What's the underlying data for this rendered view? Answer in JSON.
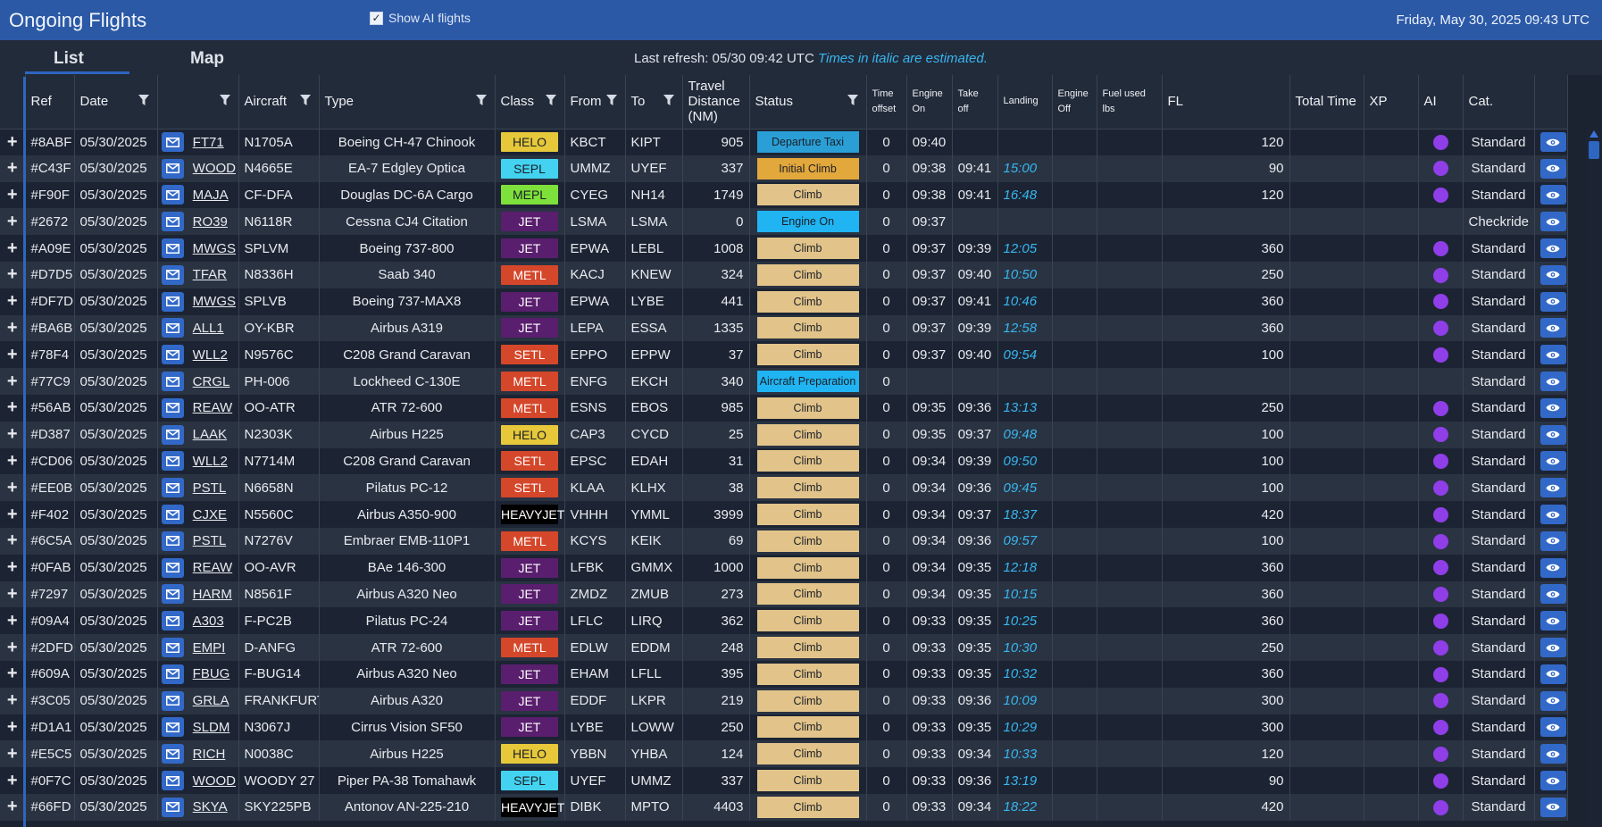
{
  "app": {
    "title": "Ongoing Flights",
    "show_ai_label": "Show AI flights",
    "show_ai_checked": true,
    "clock": "Friday, May 30, 2025 09:43 UTC"
  },
  "tabs": {
    "list": "List",
    "map": "Map",
    "active": "List"
  },
  "refresh": {
    "text": "Last refresh: 05/30 09:42 UTC",
    "note": "Times in italic are estimated."
  },
  "columns": {
    "ref": "Ref",
    "date": "Date",
    "aircraft": "Aircraft",
    "type": "Type",
    "class": "Class",
    "from": "From",
    "to": "To",
    "travel": "Travel Distance (NM)",
    "status": "Status",
    "time_offset": "Time offset",
    "engine_on": "Engine On",
    "take_off": "Take off",
    "landing": "Landing",
    "engine_off": "Engine Off",
    "fuel": "Fuel used lbs",
    "fl": "FL",
    "total_time": "Total Time",
    "xp": "XP",
    "ai": "AI",
    "cat": "Cat."
  },
  "class_colors": {
    "HELO": {
      "bg": "#e6c83a",
      "fg": "#1b1f27"
    },
    "SEPL": {
      "bg": "#43d3f0",
      "fg": "#1b1f27"
    },
    "MEPL": {
      "bg": "#7ee03a",
      "fg": "#1b1f27"
    },
    "JET": {
      "bg": "#5a1e6e",
      "fg": "#ffffff"
    },
    "METL": {
      "bg": "#d5472a",
      "fg": "#ffffff"
    },
    "SETL": {
      "bg": "#d5472a",
      "fg": "#ffffff"
    },
    "HEAVYJET": {
      "bg": "#000000",
      "fg": "#ffffff"
    }
  },
  "status_colors": {
    "Departure Taxi": "#2a9fd6",
    "Initial Climb": "#e3a83c",
    "Climb": "#e2c48a",
    "Engine On": "#20b4f2",
    "Aircraft Preparation": "#20b4f2"
  },
  "flights": [
    {
      "ref": "#8ABF",
      "date": "05/30/2025",
      "callsign": "FT71",
      "aircraft": "N1705A",
      "type": "Boeing CH-47 Chinook",
      "class": "HELO",
      "from": "KBCT",
      "to": "KIPT",
      "distance": "905",
      "status": "Departure Taxi",
      "offset": "0",
      "engine_on": "09:40",
      "take_off": "",
      "landing": "",
      "fl": "120",
      "ai": true,
      "cat": "Standard"
    },
    {
      "ref": "#C43F",
      "date": "05/30/2025",
      "callsign": "WOOD",
      "aircraft": "N4665E",
      "type": "EA-7 Edgley Optica",
      "class": "SEPL",
      "from": "UMMZ",
      "to": "UYEF",
      "distance": "337",
      "status": "Initial Climb",
      "offset": "0",
      "engine_on": "09:38",
      "take_off": "09:41",
      "landing": "15:00",
      "fl": "90",
      "ai": true,
      "cat": "Standard"
    },
    {
      "ref": "#F90F",
      "date": "05/30/2025",
      "callsign": "MAJA",
      "aircraft": "CF-DFA",
      "type": "Douglas DC-6A Cargo",
      "class": "MEPL",
      "from": "CYEG",
      "to": "NH14",
      "distance": "1749",
      "status": "Climb",
      "offset": "0",
      "engine_on": "09:38",
      "take_off": "09:41",
      "landing": "16:48",
      "fl": "120",
      "ai": true,
      "cat": "Standard"
    },
    {
      "ref": "#2672",
      "date": "05/30/2025",
      "callsign": "RO39",
      "aircraft": "N6118R",
      "type": "Cessna CJ4 Citation",
      "class": "JET",
      "from": "LSMA",
      "to": "LSMA",
      "distance": "0",
      "status": "Engine On",
      "offset": "0",
      "engine_on": "09:37",
      "take_off": "",
      "landing": "",
      "fl": "",
      "ai": false,
      "cat": "Checkride"
    },
    {
      "ref": "#A09E",
      "date": "05/30/2025",
      "callsign": "MWGS",
      "aircraft": "SPLVM",
      "type": "Boeing 737-800",
      "class": "JET",
      "from": "EPWA",
      "to": "LEBL",
      "distance": "1008",
      "status": "Climb",
      "offset": "0",
      "engine_on": "09:37",
      "take_off": "09:39",
      "landing": "12:05",
      "fl": "360",
      "ai": true,
      "cat": "Standard"
    },
    {
      "ref": "#D7D5",
      "date": "05/30/2025",
      "callsign": "TFAR",
      "aircraft": "N8336H",
      "type": "Saab 340",
      "class": "METL",
      "from": "KACJ",
      "to": "KNEW",
      "distance": "324",
      "status": "Climb",
      "offset": "0",
      "engine_on": "09:37",
      "take_off": "09:40",
      "landing": "10:50",
      "fl": "250",
      "ai": true,
      "cat": "Standard"
    },
    {
      "ref": "#DF7D",
      "date": "05/30/2025",
      "callsign": "MWGS",
      "aircraft": "SPLVB",
      "type": "Boeing 737-MAX8",
      "class": "JET",
      "from": "EPWA",
      "to": "LYBE",
      "distance": "441",
      "status": "Climb",
      "offset": "0",
      "engine_on": "09:37",
      "take_off": "09:41",
      "landing": "10:46",
      "fl": "360",
      "ai": true,
      "cat": "Standard"
    },
    {
      "ref": "#BA6B",
      "date": "05/30/2025",
      "callsign": "ALL1",
      "aircraft": "OY-KBR",
      "type": "Airbus A319",
      "class": "JET",
      "from": "LEPA",
      "to": "ESSA",
      "distance": "1335",
      "status": "Climb",
      "offset": "0",
      "engine_on": "09:37",
      "take_off": "09:39",
      "landing": "12:58",
      "fl": "360",
      "ai": true,
      "cat": "Standard"
    },
    {
      "ref": "#78F4",
      "date": "05/30/2025",
      "callsign": "WLL2",
      "aircraft": "N9576C",
      "type": "C208 Grand Caravan",
      "class": "SETL",
      "from": "EPPO",
      "to": "EPPW",
      "distance": "37",
      "status": "Climb",
      "offset": "0",
      "engine_on": "09:37",
      "take_off": "09:40",
      "landing": "09:54",
      "fl": "100",
      "ai": true,
      "cat": "Standard"
    },
    {
      "ref": "#77C9",
      "date": "05/30/2025",
      "callsign": "CRGL",
      "aircraft": "PH-006",
      "type": "Lockheed C-130E",
      "class": "METL",
      "from": "ENFG",
      "to": "EKCH",
      "distance": "340",
      "status": "Aircraft Preparation",
      "offset": "0",
      "engine_on": "",
      "take_off": "",
      "landing": "",
      "fl": "",
      "ai": false,
      "cat": "Standard"
    },
    {
      "ref": "#56AB",
      "date": "05/30/2025",
      "callsign": "REAW",
      "aircraft": "OO-ATR",
      "type": "ATR 72-600",
      "class": "METL",
      "from": "ESNS",
      "to": "EBOS",
      "distance": "985",
      "status": "Climb",
      "offset": "0",
      "engine_on": "09:35",
      "take_off": "09:36",
      "landing": "13:13",
      "fl": "250",
      "ai": true,
      "cat": "Standard"
    },
    {
      "ref": "#D387",
      "date": "05/30/2025",
      "callsign": "LAAK",
      "aircraft": "N2303K",
      "type": "Airbus H225",
      "class": "HELO",
      "from": "CAP3",
      "to": "CYCD",
      "distance": "25",
      "status": "Climb",
      "offset": "0",
      "engine_on": "09:35",
      "take_off": "09:37",
      "landing": "09:48",
      "fl": "100",
      "ai": true,
      "cat": "Standard"
    },
    {
      "ref": "#CD06",
      "date": "05/30/2025",
      "callsign": "WLL2",
      "aircraft": "N7714M",
      "type": "C208 Grand Caravan",
      "class": "SETL",
      "from": "EPSC",
      "to": "EDAH",
      "distance": "31",
      "status": "Climb",
      "offset": "0",
      "engine_on": "09:34",
      "take_off": "09:39",
      "landing": "09:50",
      "fl": "100",
      "ai": true,
      "cat": "Standard"
    },
    {
      "ref": "#EE0B",
      "date": "05/30/2025",
      "callsign": "PSTL",
      "aircraft": "N6658N",
      "type": "Pilatus PC-12",
      "class": "SETL",
      "from": "KLAA",
      "to": "KLHX",
      "distance": "38",
      "status": "Climb",
      "offset": "0",
      "engine_on": "09:34",
      "take_off": "09:36",
      "landing": "09:45",
      "fl": "100",
      "ai": true,
      "cat": "Standard"
    },
    {
      "ref": "#F402",
      "date": "05/30/2025",
      "callsign": "CJXE",
      "aircraft": "N5560C",
      "type": "Airbus A350-900",
      "class": "HEAVYJET",
      "from": "VHHH",
      "to": "YMML",
      "distance": "3999",
      "status": "Climb",
      "offset": "0",
      "engine_on": "09:34",
      "take_off": "09:37",
      "landing": "18:37",
      "fl": "420",
      "ai": true,
      "cat": "Standard"
    },
    {
      "ref": "#6C5A",
      "date": "05/30/2025",
      "callsign": "PSTL",
      "aircraft": "N7276V",
      "type": "Embraer EMB-110P1",
      "class": "METL",
      "from": "KCYS",
      "to": "KEIK",
      "distance": "69",
      "status": "Climb",
      "offset": "0",
      "engine_on": "09:34",
      "take_off": "09:36",
      "landing": "09:57",
      "fl": "100",
      "ai": true,
      "cat": "Standard"
    },
    {
      "ref": "#0FAB",
      "date": "05/30/2025",
      "callsign": "REAW",
      "aircraft": "OO-AVR",
      "type": "BAe 146-300",
      "class": "JET",
      "from": "LFBK",
      "to": "GMMX",
      "distance": "1000",
      "status": "Climb",
      "offset": "0",
      "engine_on": "09:34",
      "take_off": "09:35",
      "landing": "12:18",
      "fl": "360",
      "ai": true,
      "cat": "Standard"
    },
    {
      "ref": "#7297",
      "date": "05/30/2025",
      "callsign": "HARM",
      "aircraft": "N8561F",
      "type": "Airbus A320 Neo",
      "class": "JET",
      "from": "ZMDZ",
      "to": "ZMUB",
      "distance": "273",
      "status": "Climb",
      "offset": "0",
      "engine_on": "09:34",
      "take_off": "09:35",
      "landing": "10:15",
      "fl": "360",
      "ai": true,
      "cat": "Standard"
    },
    {
      "ref": "#09A4",
      "date": "05/30/2025",
      "callsign": "A303",
      "aircraft": "F-PC2B",
      "type": "Pilatus PC-24",
      "class": "JET",
      "from": "LFLC",
      "to": "LIRQ",
      "distance": "362",
      "status": "Climb",
      "offset": "0",
      "engine_on": "09:33",
      "take_off": "09:35",
      "landing": "10:25",
      "fl": "360",
      "ai": true,
      "cat": "Standard"
    },
    {
      "ref": "#2DFD",
      "date": "05/30/2025",
      "callsign": "EMPI",
      "aircraft": "D-ANFG",
      "type": "ATR 72-600",
      "class": "METL",
      "from": "EDLW",
      "to": "EDDM",
      "distance": "248",
      "status": "Climb",
      "offset": "0",
      "engine_on": "09:33",
      "take_off": "09:35",
      "landing": "10:30",
      "fl": "250",
      "ai": true,
      "cat": "Standard"
    },
    {
      "ref": "#609A",
      "date": "05/30/2025",
      "callsign": "FBUG",
      "aircraft": "F-BUG14",
      "type": "Airbus A320 Neo",
      "class": "JET",
      "from": "EHAM",
      "to": "LFLL",
      "distance": "395",
      "status": "Climb",
      "offset": "0",
      "engine_on": "09:33",
      "take_off": "09:35",
      "landing": "10:32",
      "fl": "360",
      "ai": true,
      "cat": "Standard"
    },
    {
      "ref": "#3C05",
      "date": "05/30/2025",
      "callsign": "GRLA",
      "aircraft": "FRANKFURT",
      "type": "Airbus A320",
      "class": "JET",
      "from": "EDDF",
      "to": "LKPR",
      "distance": "219",
      "status": "Climb",
      "offset": "0",
      "engine_on": "09:33",
      "take_off": "09:36",
      "landing": "10:09",
      "fl": "300",
      "ai": true,
      "cat": "Standard"
    },
    {
      "ref": "#D1A1",
      "date": "05/30/2025",
      "callsign": "SLDM",
      "aircraft": "N3067J",
      "type": "Cirrus Vision SF50",
      "class": "JET",
      "from": "LYBE",
      "to": "LOWW",
      "distance": "250",
      "status": "Climb",
      "offset": "0",
      "engine_on": "09:33",
      "take_off": "09:35",
      "landing": "10:29",
      "fl": "300",
      "ai": true,
      "cat": "Standard"
    },
    {
      "ref": "#E5C5",
      "date": "05/30/2025",
      "callsign": "RICH",
      "aircraft": "N0038C",
      "type": "Airbus H225",
      "class": "HELO",
      "from": "YBBN",
      "to": "YHBA",
      "distance": "124",
      "status": "Climb",
      "offset": "0",
      "engine_on": "09:33",
      "take_off": "09:34",
      "landing": "10:33",
      "fl": "120",
      "ai": true,
      "cat": "Standard"
    },
    {
      "ref": "#0F7C",
      "date": "05/30/2025",
      "callsign": "WOOD",
      "aircraft": "WOODY 27",
      "type": "Piper PA-38 Tomahawk",
      "class": "SEPL",
      "from": "UYEF",
      "to": "UMMZ",
      "distance": "337",
      "status": "Climb",
      "offset": "0",
      "engine_on": "09:33",
      "take_off": "09:36",
      "landing": "13:19",
      "fl": "90",
      "ai": true,
      "cat": "Standard"
    },
    {
      "ref": "#66FD",
      "date": "05/30/2025",
      "callsign": "SKYA",
      "aircraft": "SKY225PB",
      "type": "Antonov AN-225-210",
      "class": "HEAVYJET",
      "from": "DIBK",
      "to": "MPTO",
      "distance": "4403",
      "status": "Climb",
      "offset": "0",
      "engine_on": "09:33",
      "take_off": "09:34",
      "landing": "18:22",
      "fl": "420",
      "ai": true,
      "cat": "Standard"
    }
  ]
}
